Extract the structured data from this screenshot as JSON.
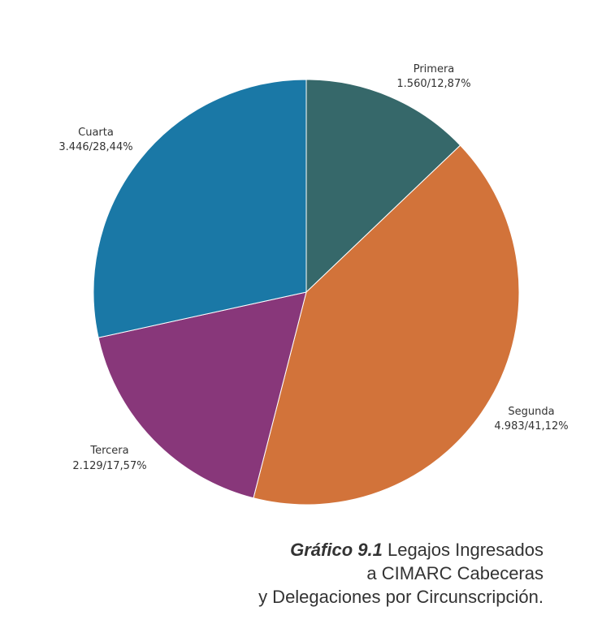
{
  "chart_data": {
    "type": "pie",
    "start": "top",
    "direction": "clockwise",
    "slices": [
      {
        "name": "Primera",
        "value": 1560,
        "percent_label": "1.560/12,87%",
        "color": "#36686a"
      },
      {
        "name": "Segunda",
        "value": 4983,
        "percent_label": "4.983/41,12%",
        "color": "#d2733a"
      },
      {
        "name": "Tercera",
        "value": 2129,
        "percent_label": "2.129/17,57%",
        "color": "#88377a"
      },
      {
        "name": "Cuarta",
        "value": 3446,
        "percent_label": "3.446/28,44%",
        "color": "#1a78a6"
      }
    ]
  },
  "caption": {
    "figure_number": "Gráfico 9.1",
    "line1": "Legajos Ingresados",
    "line2": "a CIMARC Cabeceras",
    "line3": "y Delegaciones por Circunscripción."
  }
}
